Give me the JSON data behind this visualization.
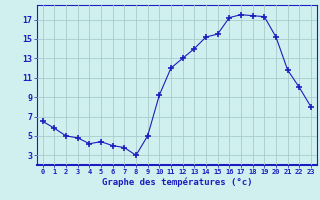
{
  "hours": [
    0,
    1,
    2,
    3,
    4,
    5,
    6,
    7,
    8,
    9,
    10,
    11,
    12,
    13,
    14,
    15,
    16,
    17,
    18,
    19,
    20,
    21,
    22,
    23
  ],
  "temps": [
    6.5,
    5.8,
    5.0,
    4.8,
    4.2,
    4.4,
    4.0,
    3.8,
    3.0,
    5.0,
    9.2,
    12.0,
    13.0,
    14.0,
    15.2,
    15.5,
    17.2,
    17.5,
    17.4,
    17.3,
    15.2,
    11.8,
    10.0,
    8.0
  ],
  "yticks": [
    3,
    5,
    7,
    9,
    11,
    13,
    15,
    17
  ],
  "ylim": [
    2.0,
    18.5
  ],
  "xlim": [
    -0.5,
    23.5
  ],
  "line_color": "#1c1cbf",
  "marker": "+",
  "bg_color": "#d0f0f0",
  "grid_color": "#a8cccc",
  "xlabel": "Graphe des températures (°c)",
  "xlabel_color": "#1c1cbf",
  "tick_color": "#1c1cbf",
  "axis_color": "#1c1cbf"
}
